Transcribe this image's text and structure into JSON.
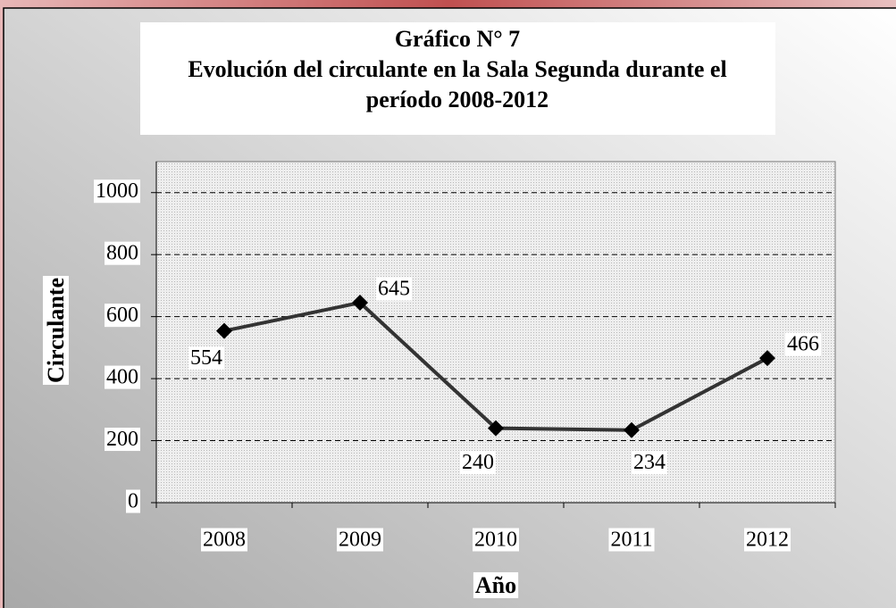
{
  "chart_data": {
    "type": "line",
    "title": [
      "Gráfico N° 7",
      "Evolución del circulante en la Sala Segunda durante el",
      "período 2008-2012"
    ],
    "x_label": "Año",
    "y_label": "Circulante",
    "categories": [
      "2008",
      "2009",
      "2010",
      "2011",
      "2012"
    ],
    "series": [
      {
        "name": "Circulante",
        "color": "#333333",
        "values": [
          554,
          645,
          240,
          234,
          466
        ]
      }
    ],
    "ylim": [
      0,
      1100
    ],
    "yticks": [
      0,
      200,
      400,
      600,
      800,
      1000
    ],
    "grid": true,
    "data_labels": true
  }
}
